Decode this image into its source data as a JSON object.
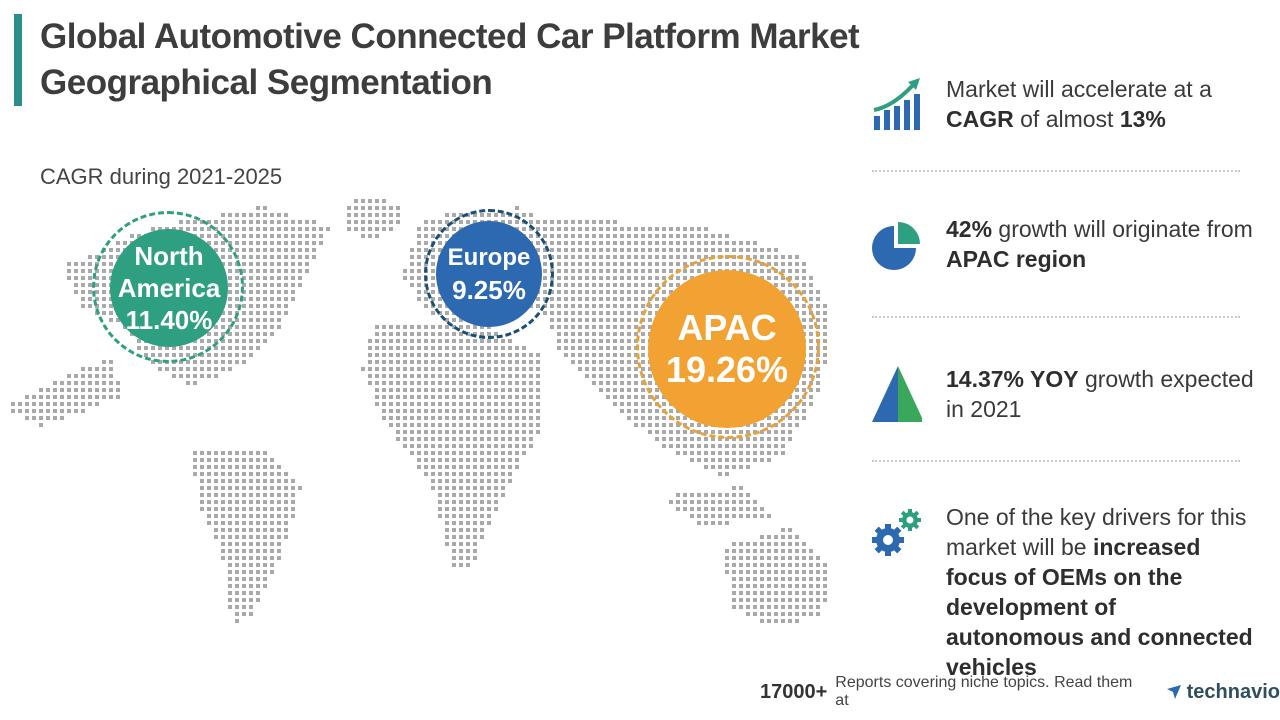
{
  "header": {
    "title_line1": "Global Automotive Connected Car Platform Market",
    "title_line2": "Geographical Segmentation"
  },
  "map": {
    "subtitle": "CAGR during 2021-2025",
    "regions": {
      "north_america": {
        "name_line1": "North",
        "name_line2": "America",
        "value": "11.40%",
        "color": "#2e9f80"
      },
      "europe": {
        "name": "Europe",
        "value": "9.25%",
        "color": "#2d69b0"
      },
      "apac": {
        "name": "APAC",
        "value": "19.26%",
        "color": "#f2a233"
      }
    }
  },
  "stats": [
    {
      "icon": "growth-chart-icon",
      "parts": [
        "Market will accelerate at a ",
        "CAGR",
        " of almost ",
        "13%"
      ]
    },
    {
      "icon": "pie-chart-icon",
      "parts": [
        "42%",
        " growth will originate from ",
        "APAC region"
      ]
    },
    {
      "icon": "pyramid-icon",
      "parts": [
        "14.37% YOY",
        " growth expected in 2021"
      ]
    },
    {
      "icon": "gears-icon",
      "parts": [
        "One of the key drivers for this market will be ",
        "increased focus of OEMs on the development of autonomous and connected vehicles"
      ]
    }
  ],
  "footer": {
    "count": "17000+",
    "note": "Reports covering niche topics. Read them at",
    "brand": "technavio"
  },
  "colors": {
    "teal": "#2a8f8a",
    "blue": "#2d69b0",
    "orange": "#f2a233",
    "map_dots": "#a9a9a9"
  }
}
